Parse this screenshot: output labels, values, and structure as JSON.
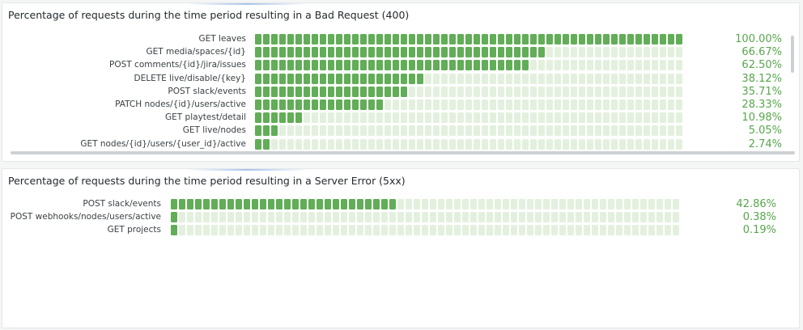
{
  "colors": {
    "filled": "#62ad57",
    "empty": "#e3f0de",
    "value_text": "#56a64b"
  },
  "panels": [
    {
      "title": "Percentage of requests during the time period resulting in a Bad Request (400)",
      "rows": [
        {
          "label": "GET leaves",
          "value": "100.00%",
          "fraction": 1.0
        },
        {
          "label": "GET media/spaces/{id}",
          "value": "66.67%",
          "fraction": 0.6667
        },
        {
          "label": "POST comments/{id}/jira/issues",
          "value": "62.50%",
          "fraction": 0.625
        },
        {
          "label": "DELETE live/disable/{key}",
          "value": "38.12%",
          "fraction": 0.3812
        },
        {
          "label": "POST slack/events",
          "value": "35.71%",
          "fraction": 0.3571
        },
        {
          "label": "PATCH nodes/{id}/users/active",
          "value": "28.33%",
          "fraction": 0.2833
        },
        {
          "label": "GET playtest/detail",
          "value": "10.98%",
          "fraction": 0.1098
        },
        {
          "label": "GET live/nodes",
          "value": "5.05%",
          "fraction": 0.0505
        },
        {
          "label": "GET nodes/{id}/users/{user_id}/active",
          "value": "2.74%",
          "fraction": 0.0274
        }
      ]
    },
    {
      "title": "Percentage of requests during the time period resulting in a Server Error (5xx)",
      "rows": [
        {
          "label": "POST slack/events",
          "value": "42.86%",
          "fraction": 0.4286
        },
        {
          "label": "POST webhooks/nodes/users/active",
          "value": "0.38%",
          "fraction": 0.0038
        },
        {
          "label": "GET projects",
          "value": "0.19%",
          "fraction": 0.0019
        }
      ]
    }
  ]
}
